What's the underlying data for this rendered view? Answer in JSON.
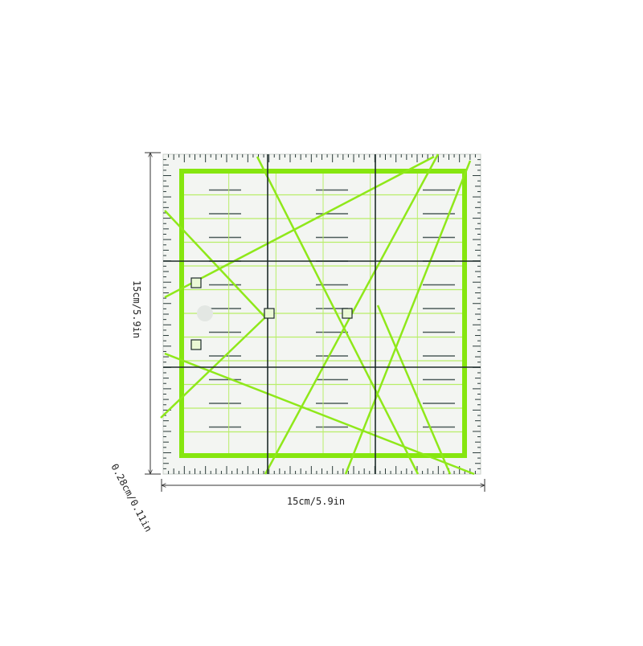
{
  "dimensions": {
    "height": "15cm/5.9in",
    "width": "15cm/5.9in",
    "thickness": "0.28cm/0.11in"
  }
}
